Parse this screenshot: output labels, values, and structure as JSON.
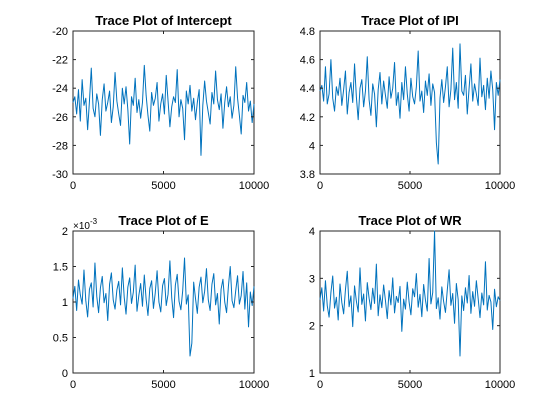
{
  "chart_data": [
    {
      "type": "line",
      "title": "Trace Plot of Intercept",
      "xlim": [
        0,
        10000
      ],
      "ylim": [
        -30,
        -20
      ],
      "xticks": [
        0,
        5000,
        10000
      ],
      "xtick_labels": [
        "0",
        "5000",
        "10000"
      ],
      "yticks": [
        -30,
        -28,
        -26,
        -24,
        -22,
        -20
      ],
      "ytick_labels": [
        "-30",
        "-28",
        "-26",
        "-24",
        "-22",
        "-20"
      ],
      "exponent_label": "",
      "grid": false,
      "series_color": "#0072BD",
      "series": [
        {
          "x_range": [
            0,
            10000
          ],
          "values": [
            -25.0,
            -24.6,
            -25.8,
            -24.1,
            -26.3,
            -23.4,
            -25.2,
            -24.7,
            -26.9,
            -24.9,
            -22.6,
            -25.4,
            -26.0,
            -24.4,
            -25.1,
            -27.3,
            -24.8,
            -23.7,
            -25.6,
            -25.0,
            -24.2,
            -26.4,
            -25.3,
            -22.9,
            -24.9,
            -25.8,
            -26.6,
            -24.0,
            -25.1,
            -23.9,
            -25.5,
            -27.9,
            -24.6,
            -25.2,
            -23.3,
            -25.7,
            -24.8,
            -26.1,
            -25.0,
            -22.4,
            -24.5,
            -25.9,
            -27.0,
            -24.3,
            -25.2,
            -24.7,
            -23.6,
            -26.3,
            -25.1,
            -24.4,
            -25.8,
            -23.1,
            -24.9,
            -26.7,
            -25.3,
            -24.6,
            -25.0,
            -22.7,
            -26.0,
            -24.8,
            -25.4,
            -27.6,
            -24.2,
            -25.1,
            -23.8,
            -25.6,
            -24.7,
            -26.2,
            -25.0,
            -24.1,
            -28.7,
            -25.2,
            -23.5,
            -24.9,
            -25.7,
            -26.5,
            -24.3,
            -25.1,
            -22.8,
            -24.8,
            -25.5,
            -24.4,
            -26.8,
            -25.0,
            -23.9,
            -25.3,
            -24.6,
            -26.1,
            -25.2,
            -22.5,
            -24.7,
            -25.9,
            -27.2,
            -24.5,
            -25.0,
            -23.6,
            -25.6,
            -24.9,
            -26.4,
            -25.1
          ]
        }
      ]
    },
    {
      "type": "line",
      "title": "Trace Plot of IPI",
      "xlim": [
        0,
        10000
      ],
      "ylim": [
        3.8,
        4.8
      ],
      "xticks": [
        0,
        5000,
        10000
      ],
      "xtick_labels": [
        "0",
        "5000",
        "10000"
      ],
      "yticks": [
        3.8,
        4.0,
        4.2,
        4.4,
        4.6,
        4.8
      ],
      "ytick_labels": [
        "3.8",
        "4",
        "4.2",
        "4.4",
        "4.6",
        "4.8"
      ],
      "exponent_label": "",
      "grid": false,
      "series_color": "#0072BD",
      "series": [
        {
          "x_range": [
            0,
            10000
          ],
          "values": [
            4.38,
            4.42,
            4.31,
            4.55,
            4.29,
            4.36,
            4.6,
            4.33,
            4.24,
            4.41,
            4.35,
            4.47,
            4.28,
            4.39,
            4.52,
            4.22,
            4.37,
            4.44,
            4.3,
            4.57,
            4.34,
            4.18,
            4.4,
            4.46,
            4.27,
            4.38,
            4.62,
            4.32,
            4.21,
            4.43,
            4.36,
            4.13,
            4.39,
            4.51,
            4.29,
            4.45,
            4.35,
            4.26,
            4.48,
            4.33,
            4.4,
            4.58,
            4.28,
            4.37,
            4.19,
            4.44,
            4.32,
            4.55,
            4.36,
            4.24,
            4.47,
            4.34,
            4.29,
            4.41,
            4.66,
            4.31,
            4.38,
            4.23,
            4.45,
            4.35,
            4.5,
            4.28,
            4.43,
            4.37,
            4.02,
            3.87,
            4.33,
            4.46,
            4.3,
            4.41,
            4.55,
            4.27,
            4.39,
            4.68,
            4.32,
            4.44,
            4.26,
            4.71,
            4.38,
            4.35,
            4.49,
            4.22,
            4.4,
            4.57,
            4.31,
            4.43,
            4.36,
            4.28,
            4.61,
            4.34,
            4.42,
            4.25,
            4.47,
            4.33,
            4.52,
            4.39,
            4.11,
            4.44,
            4.35,
            4.46
          ]
        }
      ]
    },
    {
      "type": "line",
      "title": "Trace Plot of E",
      "xlim": [
        0,
        10000
      ],
      "ylim": [
        0,
        2
      ],
      "xticks": [
        0,
        5000,
        10000
      ],
      "xtick_labels": [
        "0",
        "5000",
        "10000"
      ],
      "yticks": [
        0,
        0.5,
        1,
        1.5,
        2
      ],
      "ytick_labels": [
        "0",
        "0.5",
        "1",
        "1.5",
        "2"
      ],
      "exponent_label": "×10",
      "exponent_power": "-3",
      "grid": false,
      "series_color": "#0072BD",
      "series": [
        {
          "x_range": [
            0,
            10000
          ],
          "values": [
            1.05,
            1.22,
            0.88,
            1.31,
            1.1,
            0.97,
            1.45,
            1.02,
            0.79,
            1.18,
            1.27,
            0.93,
            1.55,
            1.08,
            0.85,
            1.2,
            1.36,
            0.99,
            1.12,
            0.74,
            1.25,
            1.41,
            1.03,
            0.9,
            1.17,
            1.29,
            0.96,
            1.48,
            1.07,
            0.83,
            1.21,
            1.34,
            0.98,
            1.14,
            1.52,
            0.87,
            1.09,
            1.26,
            0.94,
            1.38,
            1.04,
            0.81,
            1.19,
            1.3,
            0.91,
            1.13,
            1.44,
            1.0,
            0.86,
            1.23,
            1.33,
            0.95,
            1.11,
            1.58,
            1.06,
            0.78,
            1.24,
            1.39,
            1.01,
            0.89,
            1.16,
            1.62,
            0.97,
            1.1,
            0.24,
            0.42,
            1.28,
            1.05,
            0.84,
            1.21,
            1.35,
            0.99,
            1.15,
            1.47,
            1.03,
            0.88,
            1.25,
            1.4,
            0.96,
            1.12,
            0.69,
            1.18,
            1.32,
            1.0,
            0.85,
            1.22,
            1.5,
            1.02,
            0.92,
            1.16,
            1.37,
            0.97,
            1.09,
            1.43,
            0.9,
            1.27,
            0.65,
            1.14,
            0.95,
            1.22
          ]
        }
      ]
    },
    {
      "type": "line",
      "title": "Trace Plot of WR",
      "xlim": [
        0,
        10000
      ],
      "ylim": [
        1,
        4
      ],
      "xticks": [
        0,
        5000,
        10000
      ],
      "xtick_labels": [
        "0",
        "5000",
        "10000"
      ],
      "yticks": [
        1,
        2,
        3,
        4
      ],
      "ytick_labels": [
        "1",
        "2",
        "3",
        "4"
      ],
      "exponent_label": "",
      "grid": false,
      "series_color": "#0072BD",
      "series": [
        {
          "x_range": [
            0,
            10000
          ],
          "values": [
            2.55,
            2.8,
            2.31,
            2.95,
            2.42,
            2.18,
            2.7,
            3.05,
            2.37,
            2.6,
            2.12,
            2.88,
            2.49,
            2.25,
            2.76,
            3.15,
            2.4,
            2.63,
            1.98,
            2.84,
            2.52,
            2.29,
            3.22,
            2.45,
            2.67,
            2.1,
            2.91,
            2.58,
            2.34,
            2.79,
            2.47,
            3.3,
            2.21,
            2.65,
            2.38,
            2.86,
            2.53,
            2.15,
            2.74,
            2.44,
            3.01,
            2.27,
            2.62,
            2.49,
            2.83,
            1.88,
            2.56,
            2.35,
            2.92,
            2.5,
            2.23,
            2.78,
            2.61,
            3.1,
            2.39,
            2.66,
            2.19,
            2.87,
            2.54,
            2.31,
            3.42,
            2.46,
            2.7,
            4.02,
            2.36,
            2.59,
            2.14,
            2.82,
            2.51,
            2.28,
            2.75,
            3.18,
            2.43,
            2.68,
            2.05,
            2.89,
            2.55,
            1.36,
            2.63,
            2.32,
            2.8,
            2.48,
            3.06,
            2.26,
            2.72,
            2.41,
            2.95,
            2.57,
            2.17,
            2.69,
            2.44,
            3.35,
            2.33,
            2.64,
            2.5,
            1.92,
            2.77,
            2.4,
            2.61,
            2.53
          ]
        }
      ]
    }
  ]
}
